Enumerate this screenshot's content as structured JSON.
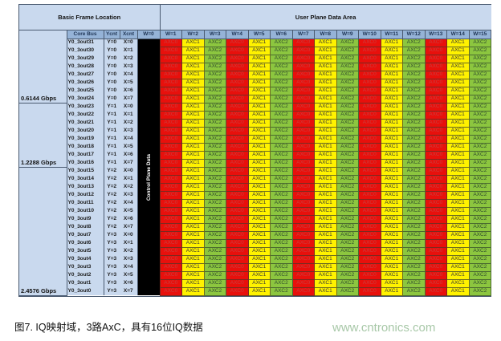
{
  "header": {
    "left_title": "Basic Frame Location",
    "right_title": "User Plane Data Area"
  },
  "columns": {
    "core_bus": "Core Bus",
    "ycnt": "Ycnt",
    "xcnt": "Xcnt",
    "w0": "W=0",
    "w": [
      "W=1",
      "W=2",
      "W=3",
      "W=4",
      "W=5",
      "W=6",
      "W=7",
      "W=8",
      "W=9",
      "W=10",
      "W=11",
      "W=12",
      "W=13",
      "W=14",
      "W=15"
    ]
  },
  "groups": [
    {
      "label": "0.6144 Gbps",
      "rows": 8
    },
    {
      "label": "1.2288 Gbps",
      "rows": 8
    },
    {
      "label": "2.4576 Gbps",
      "rows": 16
    }
  ],
  "rows": [
    [
      "Y0_3out31",
      "Y=0",
      "X=0"
    ],
    [
      "Y0_3out30",
      "Y=0",
      "X=1"
    ],
    [
      "Y0_3out29",
      "Y=0",
      "X=2"
    ],
    [
      "Y0_3out28",
      "Y=0",
      "X=3"
    ],
    [
      "Y0_3out27",
      "Y=0",
      "X=4"
    ],
    [
      "Y0_3out26",
      "Y=0",
      "X=5"
    ],
    [
      "Y0_3out25",
      "Y=0",
      "X=6"
    ],
    [
      "Y0_3out24",
      "Y=0",
      "X=7"
    ],
    [
      "Y0_3out23",
      "Y=1",
      "X=0"
    ],
    [
      "Y0_3out22",
      "Y=1",
      "X=1"
    ],
    [
      "Y0_3out21",
      "Y=1",
      "X=2"
    ],
    [
      "Y0_3out20",
      "Y=1",
      "X=3"
    ],
    [
      "Y0_3out19",
      "Y=1",
      "X=4"
    ],
    [
      "Y0_3out18",
      "Y=1",
      "X=5"
    ],
    [
      "Y0_3out17",
      "Y=1",
      "X=6"
    ],
    [
      "Y0_3out16",
      "Y=1",
      "X=7"
    ],
    [
      "Y0_3out15",
      "Y=2",
      "X=0"
    ],
    [
      "Y0_3out14",
      "Y=2",
      "X=1"
    ],
    [
      "Y0_3out13",
      "Y=2",
      "X=2"
    ],
    [
      "Y0_3out12",
      "Y=2",
      "X=3"
    ],
    [
      "Y0_3out11",
      "Y=2",
      "X=4"
    ],
    [
      "Y0_3out10",
      "Y=2",
      "X=5"
    ],
    [
      "Y0_3out9",
      "Y=2",
      "X=6"
    ],
    [
      "Y0_3out8",
      "Y=2",
      "X=7"
    ],
    [
      "Y0_3out7",
      "Y=3",
      "X=0"
    ],
    [
      "Y0_3out6",
      "Y=3",
      "X=1"
    ],
    [
      "Y0_3out5",
      "Y=3",
      "X=2"
    ],
    [
      "Y0_3out4",
      "Y=3",
      "X=3"
    ],
    [
      "Y0_3out3",
      "Y=3",
      "X=4"
    ],
    [
      "Y0_3out2",
      "Y=3",
      "X=5"
    ],
    [
      "Y0_3out1",
      "Y=3",
      "X=6"
    ],
    [
      "Y0_3out0",
      "Y=3",
      "X=7"
    ]
  ],
  "axc_labels": [
    "AXC0",
    "AXC1",
    "AXC2"
  ],
  "colors": {
    "axc0": "#e8100c",
    "axc1": "#fff200",
    "axc2": "#8cc63f",
    "control": "#000000",
    "header": "#c9d9ee"
  },
  "control_plane_label": "Control Plane Data",
  "caption": "图7. IQ映射域，3路AxC，具有16位IQ数据",
  "watermark": "www.cntronics.com"
}
